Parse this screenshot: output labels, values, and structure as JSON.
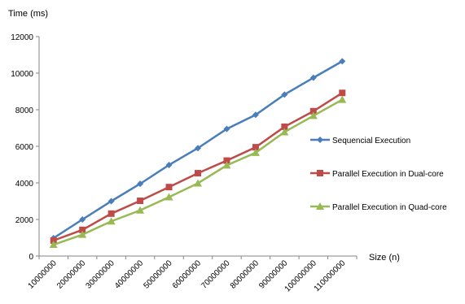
{
  "chart_data": {
    "type": "line",
    "title": "",
    "ylabel": "Time (ms)",
    "xlabel": "Size (n)",
    "ylim": [
      0,
      12000
    ],
    "yticks": [
      0,
      2000,
      4000,
      6000,
      8000,
      10000,
      12000
    ],
    "grid": false,
    "legend_position": "right",
    "categories": [
      "10000000",
      "20000000",
      "30000000",
      "40000000",
      "50000000",
      "60000000",
      "70000000",
      "80000000",
      "90000000",
      "100000000",
      "110000000"
    ],
    "series": [
      {
        "name": "Sequencial Execution",
        "color": "#4a7ebb",
        "marker": "diamond",
        "values": [
          980,
          2000,
          3000,
          3950,
          4980,
          5900,
          6950,
          7720,
          8830,
          9750,
          10650
        ]
      },
      {
        "name": "Parallel Execution in Dual-core",
        "color": "#be4b48",
        "marker": "square",
        "values": [
          850,
          1430,
          2320,
          3020,
          3770,
          4530,
          5220,
          5950,
          7070,
          7920,
          8920
        ]
      },
      {
        "name": "Parallel Execution in Quad-core",
        "color": "#98b954",
        "marker": "triangle",
        "values": [
          620,
          1170,
          1900,
          2500,
          3220,
          3980,
          4960,
          5650,
          6780,
          7670,
          8550
        ]
      }
    ]
  }
}
